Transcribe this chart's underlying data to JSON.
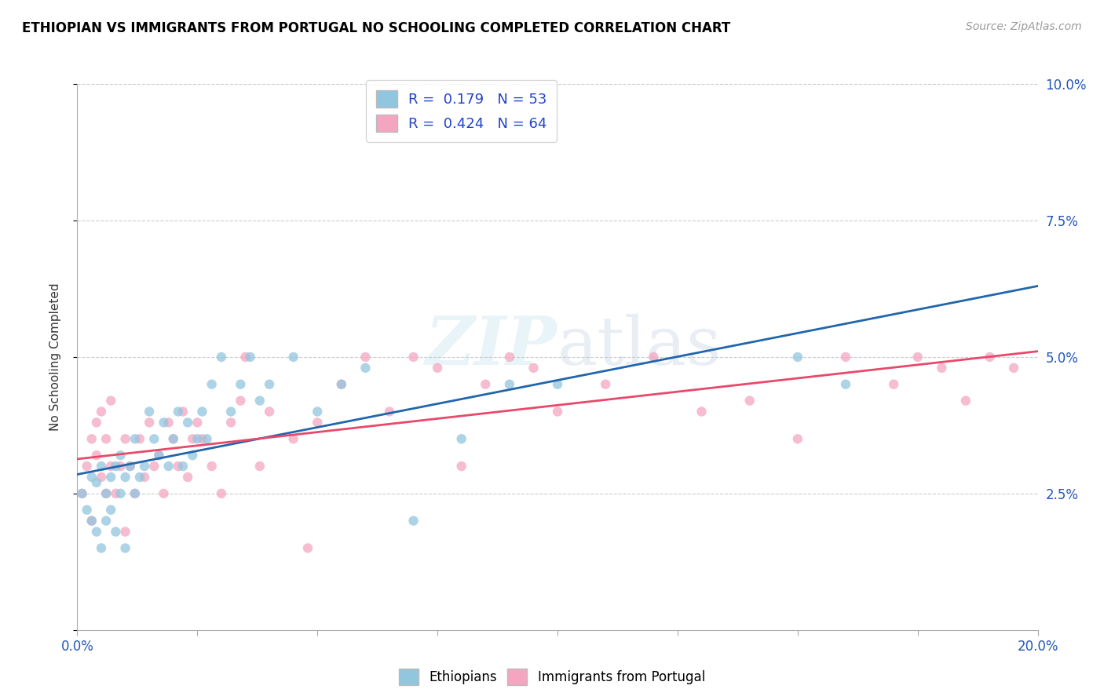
{
  "title": "ETHIOPIAN VS IMMIGRANTS FROM PORTUGAL NO SCHOOLING COMPLETED CORRELATION CHART",
  "source": "Source: ZipAtlas.com",
  "ylabel": "No Schooling Completed",
  "xlim": [
    0.0,
    0.2
  ],
  "ylim": [
    0.0,
    0.1
  ],
  "xticks": [
    0.0,
    0.025,
    0.05,
    0.075,
    0.1,
    0.125,
    0.15,
    0.175,
    0.2
  ],
  "xtick_labels": [
    "0.0%",
    "",
    "",
    "",
    "",
    "",
    "",
    "",
    "20.0%"
  ],
  "ytick_positions": [
    0.0,
    0.025,
    0.05,
    0.075,
    0.1
  ],
  "ytick_labels": [
    "",
    "2.5%",
    "5.0%",
    "7.5%",
    "10.0%"
  ],
  "color_blue": "#92c5de",
  "color_pink": "#f4a6c0",
  "line_color_blue": "#2166ac",
  "line_color_pink": "#e8496a",
  "watermark": "ZIPatlas",
  "blue_scatter_x": [
    0.001,
    0.002,
    0.003,
    0.003,
    0.004,
    0.004,
    0.005,
    0.005,
    0.006,
    0.006,
    0.007,
    0.007,
    0.008,
    0.008,
    0.009,
    0.009,
    0.01,
    0.01,
    0.011,
    0.012,
    0.012,
    0.013,
    0.014,
    0.015,
    0.016,
    0.017,
    0.018,
    0.019,
    0.02,
    0.021,
    0.022,
    0.023,
    0.024,
    0.025,
    0.026,
    0.027,
    0.028,
    0.03,
    0.032,
    0.034,
    0.036,
    0.038,
    0.04,
    0.045,
    0.05,
    0.055,
    0.06,
    0.07,
    0.08,
    0.09,
    0.1,
    0.15,
    0.16
  ],
  "blue_scatter_y": [
    0.025,
    0.022,
    0.028,
    0.02,
    0.027,
    0.018,
    0.03,
    0.015,
    0.025,
    0.02,
    0.028,
    0.022,
    0.03,
    0.018,
    0.025,
    0.032,
    0.028,
    0.015,
    0.03,
    0.025,
    0.035,
    0.028,
    0.03,
    0.04,
    0.035,
    0.032,
    0.038,
    0.03,
    0.035,
    0.04,
    0.03,
    0.038,
    0.032,
    0.035,
    0.04,
    0.035,
    0.045,
    0.05,
    0.04,
    0.045,
    0.05,
    0.042,
    0.045,
    0.05,
    0.04,
    0.045,
    0.048,
    0.02,
    0.035,
    0.045,
    0.045,
    0.05,
    0.045
  ],
  "pink_scatter_x": [
    0.001,
    0.002,
    0.003,
    0.003,
    0.004,
    0.004,
    0.005,
    0.005,
    0.006,
    0.006,
    0.007,
    0.007,
    0.008,
    0.009,
    0.01,
    0.01,
    0.011,
    0.012,
    0.013,
    0.014,
    0.015,
    0.016,
    0.017,
    0.018,
    0.019,
    0.02,
    0.021,
    0.022,
    0.023,
    0.024,
    0.025,
    0.026,
    0.028,
    0.03,
    0.032,
    0.034,
    0.035,
    0.038,
    0.04,
    0.045,
    0.048,
    0.05,
    0.055,
    0.06,
    0.065,
    0.07,
    0.075,
    0.08,
    0.085,
    0.09,
    0.095,
    0.1,
    0.11,
    0.12,
    0.13,
    0.14,
    0.15,
    0.16,
    0.17,
    0.175,
    0.18,
    0.185,
    0.19,
    0.195
  ],
  "pink_scatter_y": [
    0.025,
    0.03,
    0.035,
    0.02,
    0.032,
    0.038,
    0.028,
    0.04,
    0.025,
    0.035,
    0.03,
    0.042,
    0.025,
    0.03,
    0.035,
    0.018,
    0.03,
    0.025,
    0.035,
    0.028,
    0.038,
    0.03,
    0.032,
    0.025,
    0.038,
    0.035,
    0.03,
    0.04,
    0.028,
    0.035,
    0.038,
    0.035,
    0.03,
    0.025,
    0.038,
    0.042,
    0.05,
    0.03,
    0.04,
    0.035,
    0.015,
    0.038,
    0.045,
    0.05,
    0.04,
    0.05,
    0.048,
    0.03,
    0.045,
    0.05,
    0.048,
    0.04,
    0.045,
    0.05,
    0.04,
    0.042,
    0.035,
    0.05,
    0.045,
    0.05,
    0.048,
    0.042,
    0.05,
    0.048
  ]
}
